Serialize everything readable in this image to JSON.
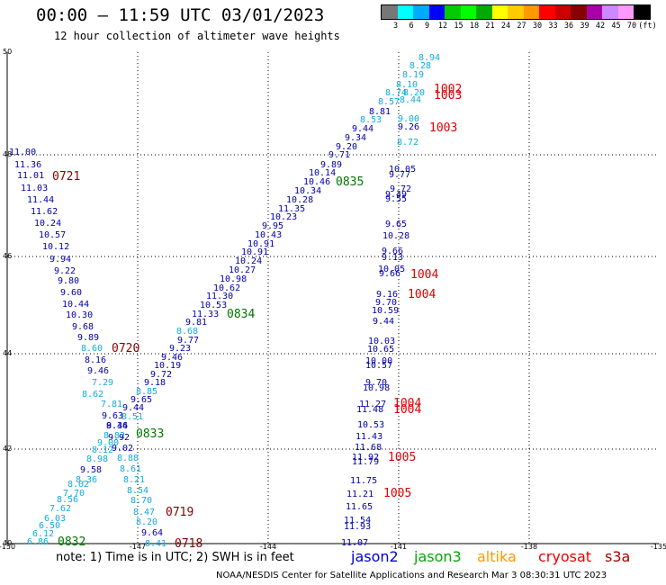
{
  "header": {
    "title": "00:00 – 11:59 UTC 03/01/2023",
    "subtitle": "12 hour collection of altimeter wave heights"
  },
  "legend": {
    "colors": [
      "#777777",
      "#00ffff",
      "#00aaff",
      "#0000ff",
      "#00cc00",
      "#00ff00",
      "#00aa00",
      "#ffff00",
      "#ffcc00",
      "#ff9900",
      "#ff0000",
      "#cc0000",
      "#880000",
      "#aa00aa",
      "#cc88ff",
      "#ff99ff",
      "#000000"
    ],
    "labels": [
      "3",
      "6",
      "9",
      "12",
      "15",
      "18",
      "21",
      "24",
      "27",
      "30",
      "33",
      "36",
      "39",
      "42",
      "45",
      "70",
      "(ft)"
    ]
  },
  "axes": {
    "x_labels": [
      "-150",
      "-147",
      "-144",
      "-141",
      "-138",
      "-135"
    ],
    "y_labels": [
      "50",
      "48",
      "46",
      "44",
      "42",
      "40"
    ]
  },
  "map": {
    "colors": {
      "navy": "#0000aa",
      "cyan": "#11aadd",
      "green": "#007700",
      "red": "#dd0000",
      "darkred": "#880000"
    },
    "heights": [
      {
        "v": "8.94",
        "c": "cyan"
      },
      {
        "v": "8.28",
        "c": "cyan"
      },
      {
        "v": "8.19",
        "c": "cyan"
      },
      {
        "v": "8.10",
        "c": "cyan"
      },
      {
        "v": "8.74",
        "c": "cyan"
      },
      {
        "v": "8.20",
        "c": "cyan"
      },
      {
        "v": "8.57",
        "c": "cyan"
      },
      {
        "v": "8.44",
        "c": "cyan"
      },
      {
        "v": "8.81",
        "c": "navy"
      },
      {
        "v": "8.53",
        "c": "cyan"
      },
      {
        "v": "9.00",
        "c": "cyan"
      },
      {
        "v": "9.26",
        "c": "navy"
      },
      {
        "v": "9.44",
        "c": "navy"
      },
      {
        "v": "9.34",
        "c": "navy"
      },
      {
        "v": "8.72",
        "c": "cyan"
      },
      {
        "v": "9.20",
        "c": "navy"
      },
      {
        "v": "9.71",
        "c": "navy"
      },
      {
        "v": "9.89",
        "c": "navy"
      },
      {
        "v": "10.05",
        "c": "navy"
      },
      {
        "v": "10.14",
        "c": "navy"
      },
      {
        "v": "9.77",
        "c": "navy"
      },
      {
        "v": "10.46",
        "c": "navy"
      },
      {
        "v": "10.34",
        "c": "navy"
      },
      {
        "v": "9.72",
        "c": "navy"
      },
      {
        "v": "10.28",
        "c": "navy"
      },
      {
        "v": "9.49",
        "c": "navy"
      },
      {
        "v": "9.55",
        "c": "navy"
      },
      {
        "v": "11.35",
        "c": "navy"
      },
      {
        "v": "10.23",
        "c": "navy"
      },
      {
        "v": "9.95",
        "c": "navy"
      },
      {
        "v": "9.65",
        "c": "navy"
      },
      {
        "v": "10.43",
        "c": "navy"
      },
      {
        "v": "10.28",
        "c": "navy"
      },
      {
        "v": "10.91",
        "c": "navy"
      },
      {
        "v": "10.91",
        "c": "navy"
      },
      {
        "v": "9.66",
        "c": "navy"
      },
      {
        "v": "9.13",
        "c": "navy"
      },
      {
        "v": "10.24",
        "c": "navy"
      },
      {
        "v": "10.27",
        "c": "navy"
      },
      {
        "v": "10.05",
        "c": "navy"
      },
      {
        "v": "10.98",
        "c": "navy"
      },
      {
        "v": "9.66",
        "c": "navy"
      },
      {
        "v": "10.62",
        "c": "navy"
      },
      {
        "v": "11.30",
        "c": "navy"
      },
      {
        "v": "9.16",
        "c": "navy"
      },
      {
        "v": "10.53",
        "c": "navy"
      },
      {
        "v": "9.70",
        "c": "navy"
      },
      {
        "v": "11.33",
        "c": "navy"
      },
      {
        "v": "10.59",
        "c": "navy"
      },
      {
        "v": "9.81",
        "c": "navy"
      },
      {
        "v": "9.44",
        "c": "navy"
      },
      {
        "v": "8.68",
        "c": "cyan"
      },
      {
        "v": "9.77",
        "c": "navy"
      },
      {
        "v": "10.03",
        "c": "navy"
      },
      {
        "v": "9.23",
        "c": "navy"
      },
      {
        "v": "10.65",
        "c": "navy"
      },
      {
        "v": "9.46",
        "c": "navy"
      },
      {
        "v": "10.00",
        "c": "navy"
      },
      {
        "v": "10.19",
        "c": "navy"
      },
      {
        "v": "10.57",
        "c": "navy"
      },
      {
        "v": "9.72",
        "c": "navy"
      },
      {
        "v": "9.18",
        "c": "navy"
      },
      {
        "v": "9.70",
        "c": "navy"
      },
      {
        "v": "8.85",
        "c": "cyan"
      },
      {
        "v": "10.98",
        "c": "navy"
      },
      {
        "v": "9.65",
        "c": "navy"
      },
      {
        "v": "11.27",
        "c": "navy"
      },
      {
        "v": "9.44",
        "c": "navy"
      },
      {
        "v": "11.48",
        "c": "navy"
      },
      {
        "v": "8.51",
        "c": "cyan"
      },
      {
        "v": "10.53",
        "c": "navy"
      },
      {
        "v": "11.43",
        "c": "navy"
      },
      {
        "v": "9.02",
        "c": "navy"
      },
      {
        "v": "11.68",
        "c": "navy"
      },
      {
        "v": "8.88",
        "c": "cyan"
      },
      {
        "v": "11.92",
        "c": "navy"
      },
      {
        "v": "11.79",
        "c": "navy"
      },
      {
        "v": "8.61",
        "c": "cyan"
      },
      {
        "v": "8.21",
        "c": "cyan"
      },
      {
        "v": "11.75",
        "c": "navy"
      },
      {
        "v": "8.54",
        "c": "cyan"
      },
      {
        "v": "11.21",
        "c": "navy"
      },
      {
        "v": "8.70",
        "c": "cyan"
      },
      {
        "v": "11.65",
        "c": "navy"
      },
      {
        "v": "8.47",
        "c": "cyan"
      },
      {
        "v": "11.54",
        "c": "navy"
      },
      {
        "v": "11.93",
        "c": "navy"
      },
      {
        "v": "8.20",
        "c": "cyan"
      },
      {
        "v": "9.64",
        "c": "navy"
      },
      {
        "v": "8.41",
        "c": "cyan"
      },
      {
        "v": "11.07",
        "c": "navy"
      },
      {
        "v": "11.00",
        "c": "navy"
      },
      {
        "v": "11.36",
        "c": "navy"
      },
      {
        "v": "11.01",
        "c": "navy"
      },
      {
        "v": "11.03",
        "c": "navy"
      },
      {
        "v": "11.44",
        "c": "navy"
      },
      {
        "v": "11.62",
        "c": "navy"
      },
      {
        "v": "10.24",
        "c": "navy"
      },
      {
        "v": "10.57",
        "c": "navy"
      },
      {
        "v": "10.12",
        "c": "navy"
      },
      {
        "v": "9.94",
        "c": "navy"
      },
      {
        "v": "9.22",
        "c": "navy"
      },
      {
        "v": "9.80",
        "c": "navy"
      },
      {
        "v": "9.60",
        "c": "navy"
      },
      {
        "v": "10.44",
        "c": "navy"
      },
      {
        "v": "10.30",
        "c": "navy"
      },
      {
        "v": "9.68",
        "c": "navy"
      },
      {
        "v": "9.89",
        "c": "navy"
      },
      {
        "v": "8.60",
        "c": "cyan"
      },
      {
        "v": "8.16",
        "c": "navy"
      },
      {
        "v": "9.46",
        "c": "navy"
      },
      {
        "v": "7.29",
        "c": "cyan"
      },
      {
        "v": "8.62",
        "c": "cyan"
      },
      {
        "v": "7.81",
        "c": "cyan"
      },
      {
        "v": "9.63",
        "c": "navy"
      },
      {
        "v": "9.46",
        "c": "navy"
      },
      {
        "v": "8.34",
        "c": "navy"
      },
      {
        "v": "8.82",
        "c": "cyan"
      },
      {
        "v": "9.92",
        "c": "navy"
      },
      {
        "v": "9.00",
        "c": "cyan"
      },
      {
        "v": "8.12",
        "c": "cyan"
      },
      {
        "v": "8.98",
        "c": "cyan"
      },
      {
        "v": "9.58",
        "c": "navy"
      },
      {
        "v": "8.36",
        "c": "cyan"
      },
      {
        "v": "8.02",
        "c": "cyan"
      },
      {
        "v": "7.70",
        "c": "cyan"
      },
      {
        "v": "8.56",
        "c": "cyan"
      },
      {
        "v": "7.62",
        "c": "cyan"
      },
      {
        "v": "6.03",
        "c": "cyan"
      },
      {
        "v": "6.50",
        "c": "cyan"
      },
      {
        "v": "6.12",
        "c": "cyan"
      },
      {
        "v": "6.86",
        "c": "cyan"
      }
    ],
    "times": [
      {
        "v": "1002",
        "c": "red"
      },
      {
        "v": "1003",
        "c": "red"
      },
      {
        "v": "1003",
        "c": "red"
      },
      {
        "v": "0835",
        "c": "green"
      },
      {
        "v": "0721",
        "c": "darkred"
      },
      {
        "v": "1004",
        "c": "red"
      },
      {
        "v": "1004",
        "c": "red"
      },
      {
        "v": "0834",
        "c": "green"
      },
      {
        "v": "0720",
        "c": "darkred"
      },
      {
        "v": "1004",
        "c": "red"
      },
      {
        "v": "1004",
        "c": "red"
      },
      {
        "v": "0833",
        "c": "green"
      },
      {
        "v": "1005",
        "c": "red"
      },
      {
        "v": "1005",
        "c": "red"
      },
      {
        "v": "0719",
        "c": "darkred"
      },
      {
        "v": "0718",
        "c": "darkred"
      },
      {
        "v": "0832",
        "c": "green"
      }
    ]
  },
  "footer": {
    "note": "note: 1) Time is in UTC; 2) SWH is in feet",
    "satellites": [
      {
        "name": "jason2",
        "color": "#0000cc"
      },
      {
        "name": "jason3",
        "color": "#00aa00"
      },
      {
        "name": "altika",
        "color": "#ff9900"
      },
      {
        "name": "cryosat",
        "color": "#ee0000"
      },
      {
        "name": "s3a",
        "color": "#aa0000"
      }
    ],
    "credit": "NOAA/NESDIS Center for Satellite Applications and Research    Mar  3 08:30:31 UTC 2023"
  }
}
